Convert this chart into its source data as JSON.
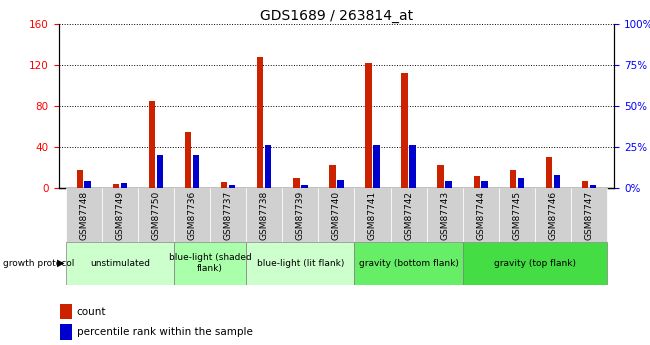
{
  "title": "GDS1689 / 263814_at",
  "samples": [
    "GSM87748",
    "GSM87749",
    "GSM87750",
    "GSM87736",
    "GSM87737",
    "GSM87738",
    "GSM87739",
    "GSM87740",
    "GSM87741",
    "GSM87742",
    "GSM87743",
    "GSM87744",
    "GSM87745",
    "GSM87746",
    "GSM87747"
  ],
  "count_values": [
    18,
    4,
    85,
    55,
    6,
    128,
    10,
    22,
    122,
    112,
    22,
    12,
    18,
    30,
    7
  ],
  "percentile_values": [
    4,
    3,
    20,
    20,
    2,
    26,
    2,
    5,
    26,
    26,
    4,
    4,
    6,
    8,
    2
  ],
  "groups": [
    {
      "label": "unstimulated",
      "start": 0,
      "end": 3,
      "color": "#ccffcc"
    },
    {
      "label": "blue-light (shaded\nflank)",
      "start": 3,
      "end": 5,
      "color": "#aaffaa"
    },
    {
      "label": "blue-light (lit flank)",
      "start": 5,
      "end": 8,
      "color": "#ccffcc"
    },
    {
      "label": "gravity (bottom flank)",
      "start": 8,
      "end": 11,
      "color": "#66ee66"
    },
    {
      "label": "gravity (top flank)",
      "start": 11,
      "end": 15,
      "color": "#44dd44"
    }
  ],
  "ylim_left": [
    0,
    160
  ],
  "ylim_right": [
    0,
    100
  ],
  "yticks_left": [
    0,
    40,
    80,
    120,
    160
  ],
  "ytick_labels_left": [
    "0",
    "40",
    "80",
    "120",
    "160"
  ],
  "yticks_right": [
    0,
    25,
    50,
    75,
    100
  ],
  "ytick_labels_right": [
    "0%",
    "25%",
    "50%",
    "75%",
    "100%"
  ],
  "bar_width": 0.18,
  "bar_gap": 0.04,
  "count_color": "#cc2200",
  "percentile_color": "#0000cc",
  "sample_bg_color": "#d0d0d0",
  "background_color": "#ffffff"
}
